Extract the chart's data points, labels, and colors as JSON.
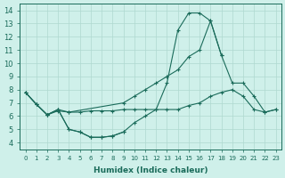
{
  "xlabel": "Humidex (Indice chaleur)",
  "bg_color": "#cff0ea",
  "grid_color": "#aed8d0",
  "line_color": "#1a6b5a",
  "xlim": [
    -0.5,
    23.5
  ],
  "ylim": [
    3.5,
    14.5
  ],
  "xticks": [
    0,
    1,
    2,
    3,
    4,
    5,
    6,
    7,
    8,
    9,
    10,
    11,
    12,
    13,
    14,
    15,
    16,
    17,
    18,
    19,
    20,
    21,
    22,
    23
  ],
  "yticks": [
    4,
    5,
    6,
    7,
    8,
    9,
    10,
    11,
    12,
    13,
    14
  ],
  "line_peak_x": [
    0,
    1,
    2,
    3,
    4,
    5,
    6,
    7,
    8,
    9,
    10,
    11,
    12,
    13,
    14,
    15,
    16,
    17,
    18
  ],
  "line_peak_y": [
    7.8,
    6.9,
    6.1,
    6.5,
    5.0,
    4.8,
    4.4,
    4.4,
    4.5,
    4.8,
    5.5,
    6.0,
    6.5,
    8.5,
    12.5,
    13.8,
    13.8,
    13.2,
    10.6
  ],
  "line_slow_x": [
    0,
    1,
    2,
    3,
    4,
    9,
    10,
    11,
    12,
    13,
    14,
    15,
    16,
    17,
    18,
    19,
    20,
    21,
    22,
    23
  ],
  "line_slow_y": [
    7.8,
    6.9,
    6.1,
    6.5,
    6.3,
    7.0,
    7.5,
    8.0,
    8.5,
    9.0,
    9.5,
    10.5,
    11.0,
    13.2,
    10.6,
    8.5,
    8.5,
    7.5,
    6.3,
    6.5
  ],
  "line_flat_x": [
    0,
    1,
    2,
    3,
    4,
    5,
    6,
    7,
    8,
    9,
    10,
    11,
    12,
    13,
    14,
    15,
    16,
    17,
    18,
    19,
    20,
    21,
    22,
    23
  ],
  "line_flat_y": [
    7.8,
    6.9,
    6.1,
    6.4,
    6.3,
    6.3,
    6.4,
    6.4,
    6.4,
    6.5,
    6.5,
    6.5,
    6.5,
    6.5,
    6.5,
    6.8,
    7.0,
    7.5,
    7.8,
    8.0,
    7.5,
    6.5,
    6.3,
    6.5
  ],
  "line_low_x": [
    2,
    3,
    4,
    5,
    6,
    7,
    8,
    9
  ],
  "line_low_y": [
    6.1,
    6.5,
    5.0,
    4.8,
    4.4,
    4.4,
    4.5,
    4.8
  ]
}
